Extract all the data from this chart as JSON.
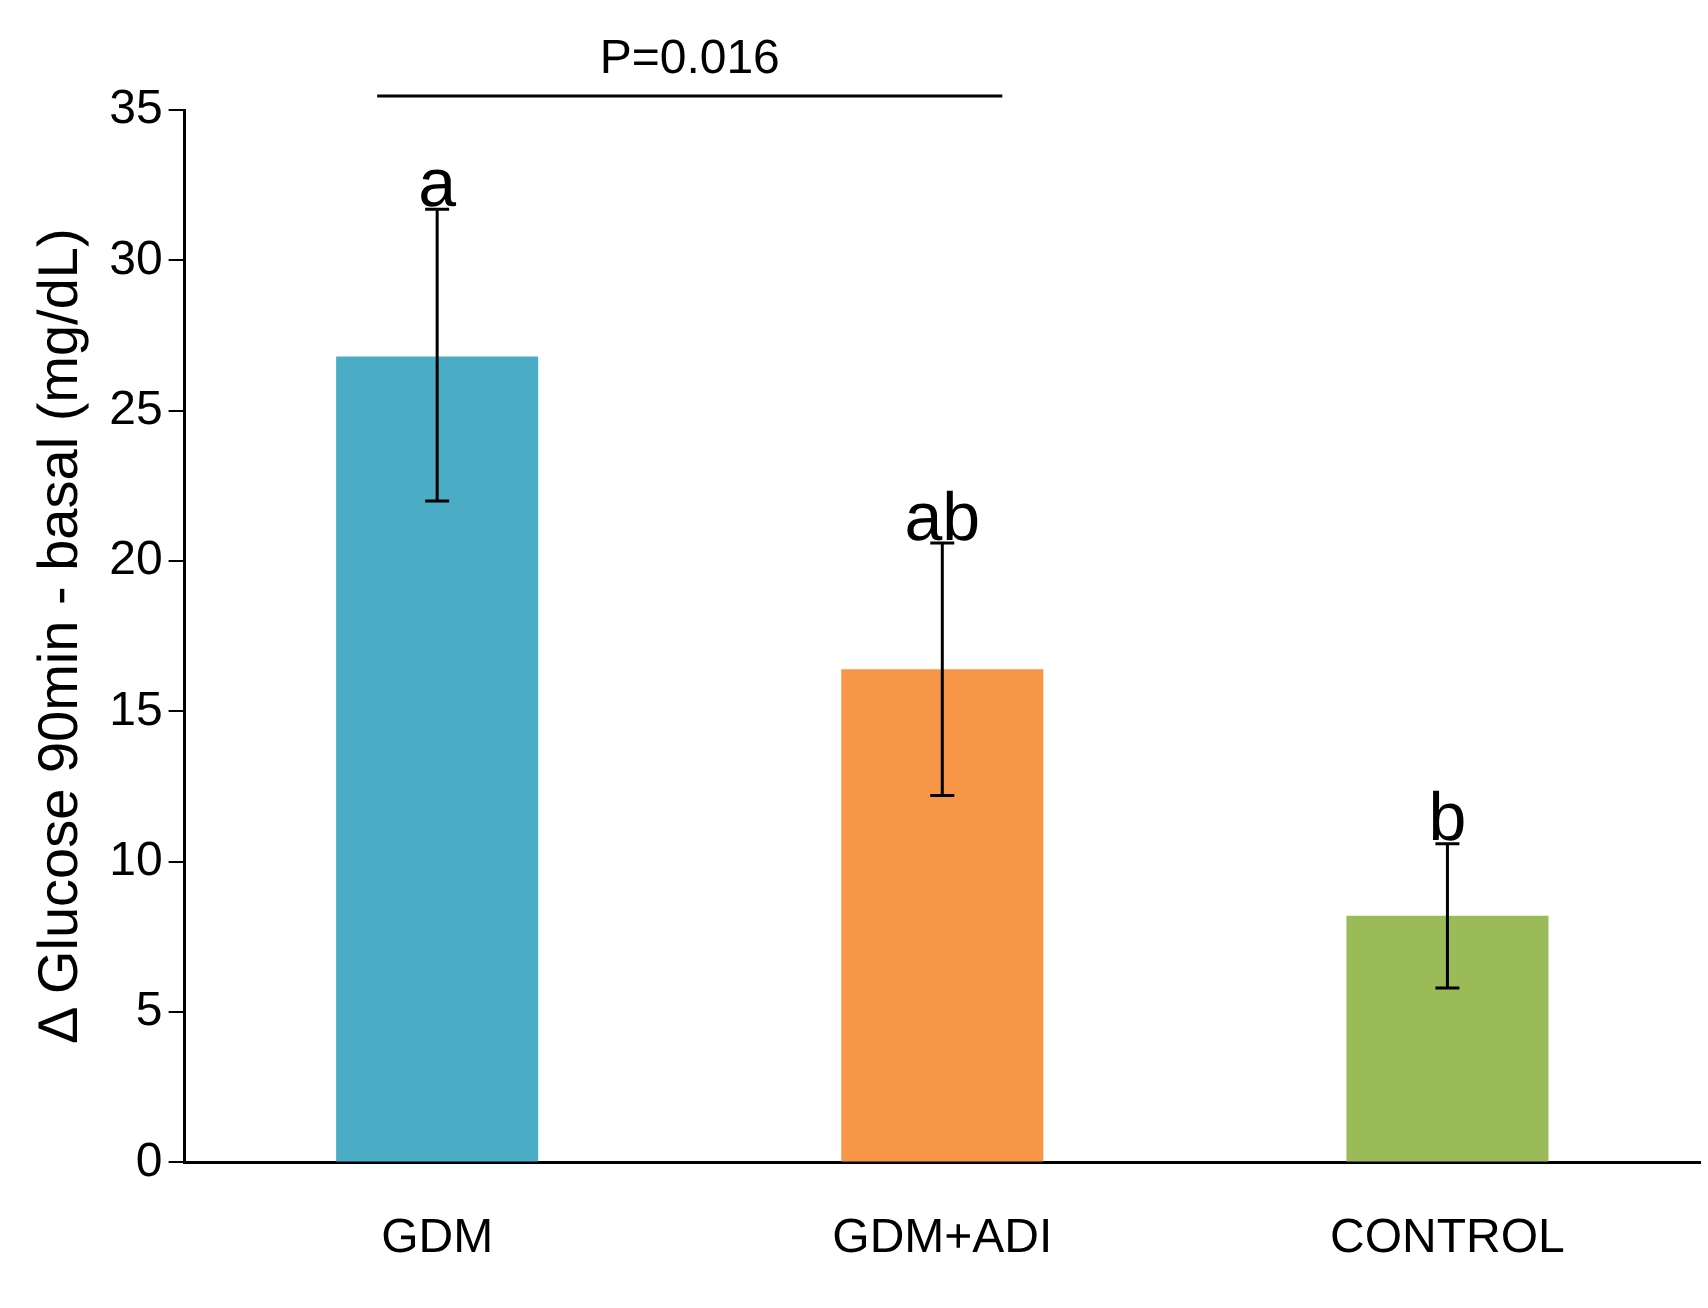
{
  "chart_data": {
    "type": "bar",
    "ylabel": "Δ Glucose 90min - basal (mg/dL)",
    "categories": [
      "GDM",
      "GDM+ADI",
      "CONTROL"
    ],
    "values": [
      26.8,
      16.4,
      8.2
    ],
    "colors": [
      "#4bacc6",
      "#f79646",
      "#9bbb59"
    ],
    "errors": [
      [
        22.0,
        31.7
      ],
      [
        12.2,
        20.6
      ],
      [
        5.8,
        10.6
      ]
    ],
    "ylim": [
      0,
      35
    ],
    "yticks": [
      0,
      5,
      10,
      15,
      20,
      25,
      30,
      35
    ],
    "grid": false,
    "legend": false,
    "annotations": [
      "P=0.016",
      {
        "text": "a",
        "x": "GDM",
        "y": 31.7
      },
      {
        "text": "ab",
        "x": "GDM+ADI",
        "y": 20.6
      },
      {
        "text": "b",
        "x": "CONTROL",
        "y": 10.6
      }
    ]
  }
}
